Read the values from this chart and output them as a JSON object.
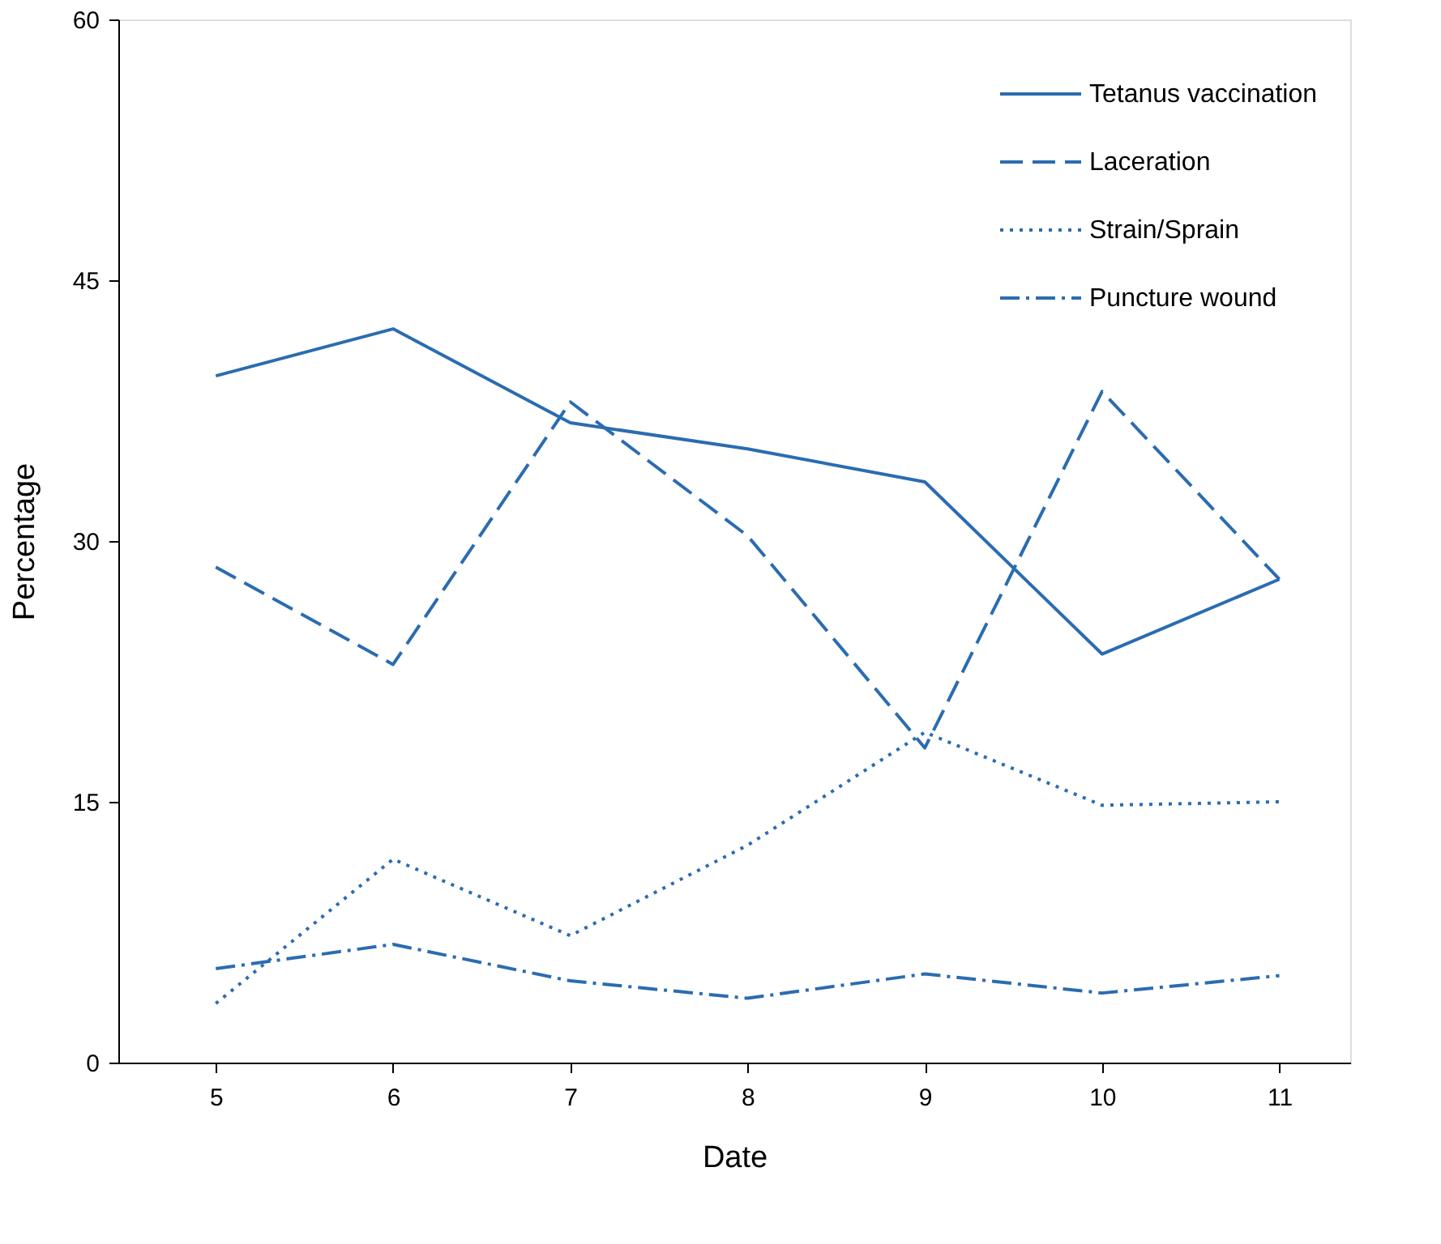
{
  "chart_data": {
    "type": "line",
    "xlabel": "Date",
    "ylabel": "Percentage",
    "x": [
      5,
      6,
      7,
      8,
      9,
      10,
      11
    ],
    "xlim": [
      4.45,
      11.4
    ],
    "xticks": [
      5,
      6,
      7,
      8,
      9,
      10,
      11
    ],
    "ylim": [
      0,
      60
    ],
    "yticks": [
      0,
      15,
      30,
      45,
      60
    ],
    "grid": false,
    "legend": "top right",
    "marker": "none",
    "series": [
      {
        "name": "Tetanus vaccination",
        "color": "#2b6cb0",
        "line_style": "solid",
        "values": [
          39.5,
          42.2,
          36.8,
          35.3,
          33.4,
          23.5,
          27.8
        ]
      },
      {
        "name": "Laceration",
        "color": "#2b6cb0",
        "line_style": "dashed",
        "values": [
          28.5,
          22.9,
          38.0,
          30.3,
          18.1,
          38.6,
          27.8
        ]
      },
      {
        "name": "Strain/Sprain",
        "color": "#2b6cb0",
        "line_style": "dotted",
        "values": [
          3.4,
          11.7,
          7.3,
          12.5,
          19.0,
          14.8,
          15.0
        ]
      },
      {
        "name": "Puncture wound",
        "color": "#2b6cb0",
        "line_style": "dashdot",
        "values": [
          5.4,
          6.8,
          4.7,
          3.7,
          5.1,
          4.0,
          5.0
        ]
      }
    ]
  }
}
